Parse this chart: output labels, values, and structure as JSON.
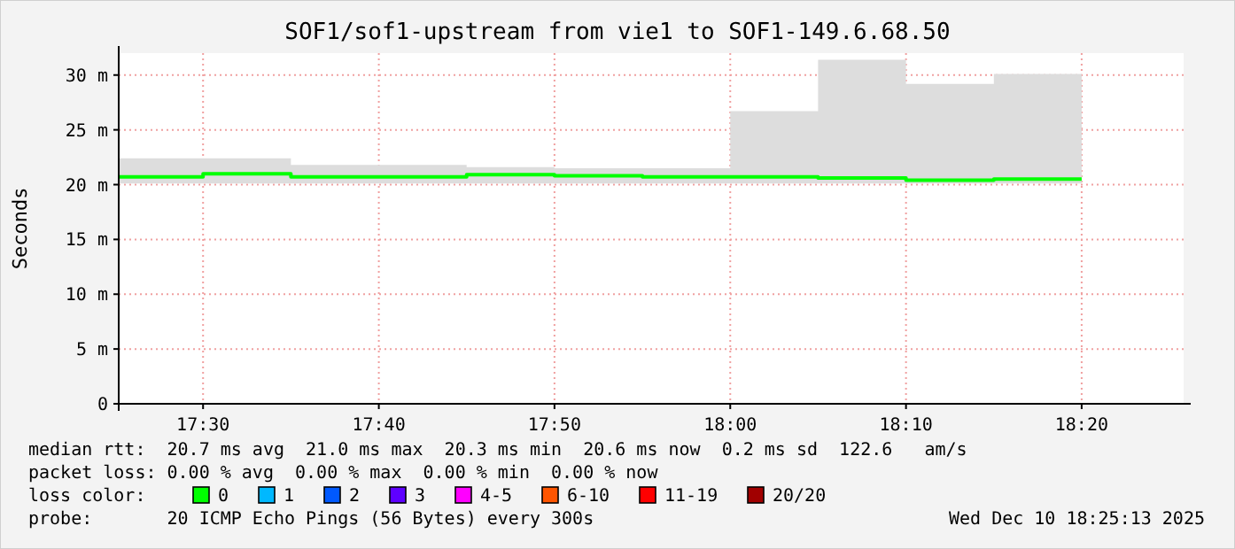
{
  "chart_data": {
    "type": "step",
    "title": "SOF1/sof1-upstream from vie1 to SOF1-149.6.68.50",
    "ylabel": "Seconds",
    "xlim": [
      17.42,
      18.43
    ],
    "xticks": [
      {
        "value": 17.5,
        "label": "17:30"
      },
      {
        "value": 17.6667,
        "label": "17:40"
      },
      {
        "value": 17.8333,
        "label": "17:50"
      },
      {
        "value": 18.0,
        "label": "18:00"
      },
      {
        "value": 18.1667,
        "label": "18:10"
      },
      {
        "value": 18.3333,
        "label": "18:20"
      }
    ],
    "ylim": [
      0,
      32
    ],
    "yticks": [
      {
        "value": 0,
        "label": "0"
      },
      {
        "value": 5,
        "label": "5 m"
      },
      {
        "value": 10,
        "label": "10 m"
      },
      {
        "value": 15,
        "label": "15 m"
      },
      {
        "value": 20,
        "label": "20 m"
      },
      {
        "value": 25,
        "label": "25 m"
      },
      {
        "value": 30,
        "label": "30 m"
      }
    ],
    "grid": true,
    "legend": "bottom",
    "legend_title": "loss color:",
    "x": [
      17.42,
      17.5,
      17.5833,
      17.6667,
      17.75,
      17.8333,
      17.9167,
      18.0,
      18.0833,
      18.1667,
      18.25,
      18.3333
    ],
    "series": [
      {
        "name": "0",
        "color": "#00ff00",
        "values": [
          20.7,
          21.0,
          20.7,
          20.7,
          20.9,
          20.8,
          20.7,
          20.7,
          20.6,
          20.4,
          20.5,
          20.5
        ],
        "lower": [
          20.1,
          20.1,
          20.1,
          20.1,
          20.1,
          20.1,
          20.1,
          20.1,
          20.1,
          20.1,
          20.1,
          20.1
        ],
        "upper": [
          22.4,
          22.4,
          21.8,
          21.8,
          21.6,
          21.5,
          21.5,
          26.7,
          31.4,
          29.2,
          30.1,
          30.1
        ]
      },
      {
        "name": "1",
        "color": "#00b8ff",
        "values": [
          null,
          null,
          null,
          null,
          null,
          null,
          null,
          null,
          null,
          null,
          null,
          null
        ]
      },
      {
        "name": "2",
        "color": "#0059ff",
        "values": [
          null,
          null,
          null,
          null,
          null,
          null,
          null,
          null,
          null,
          null,
          null,
          null
        ]
      },
      {
        "name": "3",
        "color": "#5e00ff",
        "values": [
          null,
          null,
          null,
          null,
          null,
          null,
          null,
          null,
          null,
          null,
          null,
          null
        ]
      },
      {
        "name": "4-5",
        "color": "#ff00ff",
        "values": [
          null,
          null,
          null,
          null,
          null,
          null,
          null,
          null,
          null,
          null,
          null,
          null
        ]
      },
      {
        "name": "6-10",
        "color": "#ff5500",
        "values": [
          null,
          null,
          null,
          null,
          null,
          null,
          null,
          null,
          null,
          null,
          null,
          null
        ]
      },
      {
        "name": "11-19",
        "color": "#ff0000",
        "values": [
          null,
          null,
          null,
          null,
          null,
          null,
          null,
          null,
          null,
          null,
          null,
          null
        ]
      },
      {
        "name": "20/20",
        "color": "#a10000",
        "values": [
          null,
          null,
          null,
          null,
          null,
          null,
          null,
          null,
          null,
          null,
          null,
          null
        ]
      }
    ],
    "annotations": [
      "median rtt:  20.7 ms avg  21.0 ms max  20.3 ms min  20.6 ms now  0.2 ms sd  122.6   am/s",
      "packet loss: 0.00 % avg  0.00 % max  0.00 % min  0.00 % now",
      "probe:       20 ICMP Echo Pings (56 Bytes) every 300s",
      "Wed Dec 10 18:25:13 2025"
    ]
  }
}
